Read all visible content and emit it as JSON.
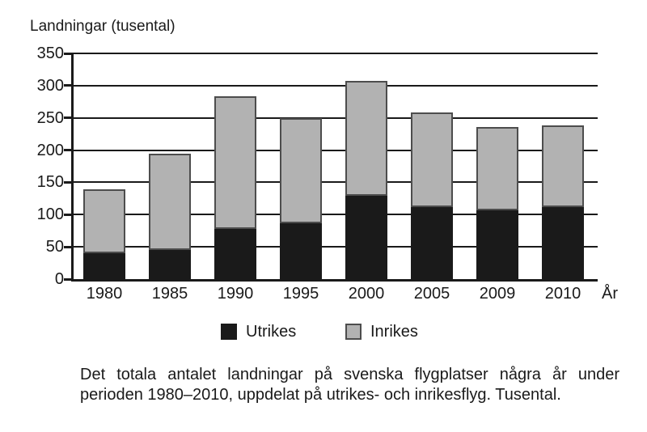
{
  "figure": {
    "title": "Landningar (tusental)",
    "x_axis_suffix": "År"
  },
  "chart_data": {
    "type": "bar",
    "stacked": true,
    "title": "Landningar (tusental)",
    "xlabel": "År",
    "ylabel": "Landningar (tusental)",
    "categories": [
      "1980",
      "1985",
      "1990",
      "1995",
      "2000",
      "2005",
      "2009",
      "2010"
    ],
    "series": [
      {
        "name": "Utrikes",
        "color": "#1a1a1a",
        "border": "#1a1a1a",
        "values": [
          40,
          45,
          78,
          86,
          129,
          112,
          107,
          112
        ]
      },
      {
        "name": "Inrikes",
        "color": "#b2b2b2",
        "border": "#4d4d4d",
        "values": [
          99,
          150,
          205,
          164,
          178,
          146,
          129,
          126
        ]
      }
    ],
    "totals": [
      139,
      195,
      283,
      250,
      307,
      258,
      236,
      238
    ],
    "ylim": [
      0,
      350
    ],
    "yticks": [
      0,
      50,
      100,
      150,
      200,
      250,
      300,
      350
    ],
    "grid": true,
    "legend_position": "bottom"
  },
  "legend": {
    "items": [
      {
        "label": "Utrikes",
        "color": "#1a1a1a",
        "border": "#1a1a1a"
      },
      {
        "label": "Inrikes",
        "color": "#b2b2b2",
        "border": "#4d4d4d"
      }
    ]
  },
  "caption": {
    "line1": "Det totala antalet landningar på svenska flygplatser några år under",
    "line2": "perioden 1980–2010, uppdelat på utrikes- och inrikesflyg. Tusental."
  },
  "colors": {
    "background": "#ffffff",
    "text": "#1a1a1a",
    "grid": "#1a1a1a"
  }
}
